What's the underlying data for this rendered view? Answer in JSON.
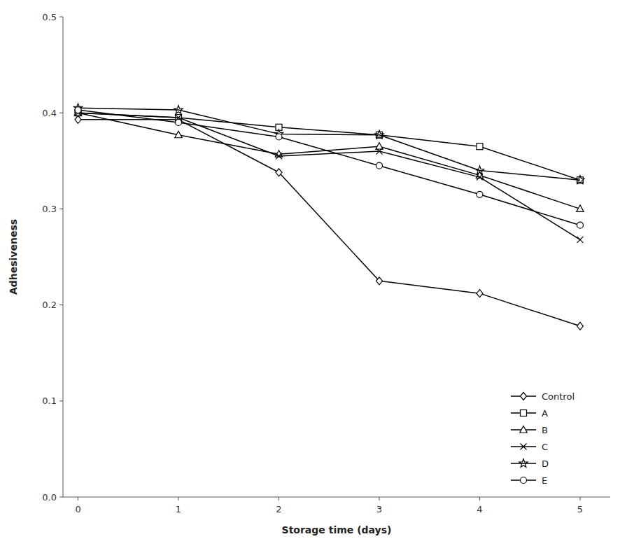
{
  "chart_data": {
    "type": "line",
    "xlabel": "Storage time (days)",
    "ylabel": "Adhesiveness",
    "x": [
      0,
      1,
      2,
      3,
      4,
      5
    ],
    "series": [
      {
        "name": "Control",
        "color": "#000000",
        "marker": "diamond",
        "values": [
          0.393,
          0.393,
          0.338,
          0.225,
          0.212,
          0.178
        ]
      },
      {
        "name": "A",
        "color": "#000000",
        "marker": "square",
        "values": [
          0.4,
          0.395,
          0.385,
          0.377,
          0.365,
          0.33
        ]
      },
      {
        "name": "B",
        "color": "#000000",
        "marker": "triangle",
        "values": [
          0.4,
          0.377,
          0.357,
          0.365,
          0.335,
          0.3
        ]
      },
      {
        "name": "C",
        "color": "#000000",
        "marker": "x",
        "values": [
          0.4,
          0.395,
          0.355,
          0.36,
          0.333,
          0.268
        ]
      },
      {
        "name": "D",
        "color": "#000000",
        "marker": "star",
        "values": [
          0.405,
          0.403,
          0.378,
          0.377,
          0.34,
          0.33
        ]
      },
      {
        "name": "E",
        "color": "#000000",
        "marker": "circle",
        "values": [
          0.403,
          0.39,
          0.375,
          0.345,
          0.315,
          0.283
        ]
      }
    ],
    "xlim": [
      -0.15,
      5.3
    ],
    "ylim": [
      0.0,
      0.5
    ],
    "xticks": [
      0,
      1,
      2,
      3,
      4,
      5
    ],
    "yticks": [
      {
        "value": 0.0,
        "label": "0.0"
      },
      0.1,
      0.2,
      0.3,
      0.4,
      0.5
    ],
    "grid": false,
    "legend": "lower right"
  }
}
